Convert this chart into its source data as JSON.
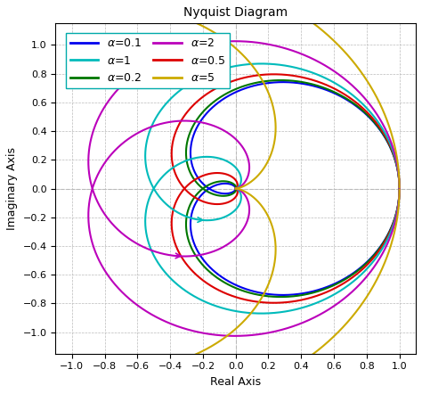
{
  "title": "Nyquist Diagram",
  "xlabel": "Real Axis",
  "ylabel": "Imaginary Axis",
  "alphas": [
    0.1,
    0.2,
    0.5,
    1,
    2,
    5
  ],
  "T": 1,
  "n": 3,
  "color_map": {
    "0.1": "#0000EE",
    "0.2": "#007700",
    "0.5": "#DD0000",
    "1": "#00BBBB",
    "2": "#BB00BB",
    "5": "#CCAA00"
  },
  "xlim": [
    -1.1,
    1.1
  ],
  "ylim": [
    -1.15,
    1.15
  ],
  "xticks": [
    -1,
    -0.8,
    -0.6,
    -0.4,
    -0.2,
    0,
    0.2,
    0.4,
    0.6,
    0.8,
    1
  ],
  "yticks": [
    -1,
    -0.8,
    -0.6,
    -0.4,
    -0.2,
    0,
    0.2,
    0.4,
    0.6,
    0.8,
    1
  ],
  "background_color": "#FFFFFF",
  "grid_color": "#BBBBBB",
  "legend_edge_color": "#00AAAA",
  "figsize": [
    4.74,
    4.42
  ],
  "dpi": 100
}
